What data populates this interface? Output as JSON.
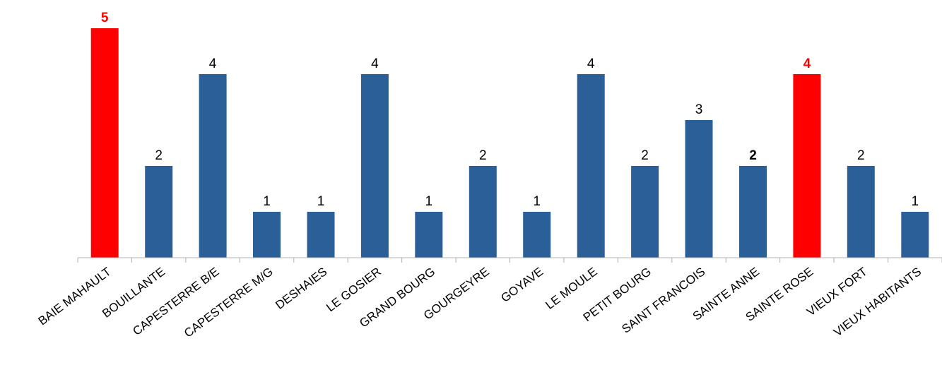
{
  "chart_data": {
    "type": "bar",
    "title": "",
    "xlabel": "",
    "ylabel": "",
    "ylim": [
      0,
      5
    ],
    "grid": false,
    "legend": "none",
    "categories": [
      "BAIE MAHAULT",
      "BOUILLANTE",
      "CAPESTERRE B/E",
      "CAPESTERRE M/G",
      "DESHAIES",
      "LE GOSIER",
      "GRAND BOURG",
      "GOURGEYRE",
      "GOYAVE",
      "LE MOULE",
      "PETIT BOURG",
      "SAINT FRANCOIS",
      "SAINTE ANNE",
      "SAINTE ROSE",
      "VIEUX FORT",
      "VIEUX HABITANTS"
    ],
    "values": [
      5,
      2,
      4,
      1,
      1,
      4,
      1,
      2,
      1,
      4,
      2,
      3,
      2,
      4,
      2,
      1
    ],
    "highlighted": [
      "BAIE MAHAULT",
      "SAINTE ROSE"
    ],
    "bold_labels": [
      "SAINTE ANNE"
    ],
    "colors": {
      "bar": "#2b5f97",
      "highlight": "#ff0000",
      "axis": "#b0b0b0"
    }
  }
}
